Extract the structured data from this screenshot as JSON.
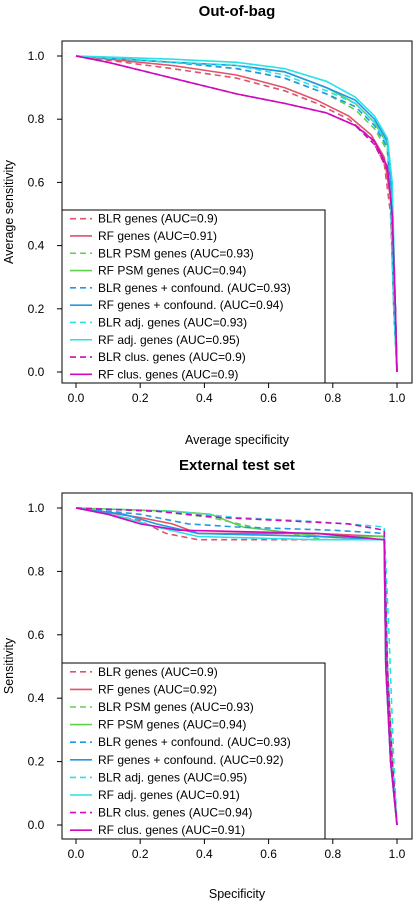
{
  "chart_data": [
    {
      "type": "line",
      "title": "Out-of-bag",
      "xlabel": "Average specificity",
      "ylabel": "Average sensitivity",
      "xlim": [
        0,
        1
      ],
      "ylim": [
        0,
        1
      ],
      "xticks": [
        "0.0",
        "0.2",
        "0.4",
        "0.6",
        "0.8",
        "1.0"
      ],
      "yticks": [
        "0.0",
        "0.2",
        "0.4",
        "0.6",
        "0.8",
        "1.0"
      ],
      "grid": false,
      "legend_position": "bottom-left",
      "series": [
        {
          "name": "BLR genes (AUC=0.9)",
          "color": "#df536b",
          "dash": true,
          "points": [
            [
              0,
              1
            ],
            [
              0.3,
              0.96
            ],
            [
              0.5,
              0.93
            ],
            [
              0.65,
              0.89
            ],
            [
              0.75,
              0.85
            ],
            [
              0.85,
              0.8
            ],
            [
              0.92,
              0.74
            ],
            [
              0.96,
              0.66
            ],
            [
              0.98,
              0.5
            ],
            [
              0.99,
              0.2
            ],
            [
              1,
              0
            ]
          ]
        },
        {
          "name": "RF genes (AUC=0.91)",
          "color": "#df536b",
          "dash": false,
          "points": [
            [
              0,
              1
            ],
            [
              0.3,
              0.97
            ],
            [
              0.5,
              0.94
            ],
            [
              0.65,
              0.9
            ],
            [
              0.75,
              0.86
            ],
            [
              0.85,
              0.81
            ],
            [
              0.92,
              0.75
            ],
            [
              0.96,
              0.68
            ],
            [
              0.98,
              0.55
            ],
            [
              0.99,
              0.25
            ],
            [
              1,
              0
            ]
          ]
        },
        {
          "name": "BLR PSM genes (AUC=0.93)",
          "color": "#61d04f",
          "dash": true,
          "points": [
            [
              0,
              1
            ],
            [
              0.3,
              0.98
            ],
            [
              0.5,
              0.96
            ],
            [
              0.65,
              0.93
            ],
            [
              0.78,
              0.88
            ],
            [
              0.87,
              0.83
            ],
            [
              0.93,
              0.77
            ],
            [
              0.97,
              0.7
            ],
            [
              0.98,
              0.55
            ],
            [
              0.99,
              0.2
            ],
            [
              1,
              0
            ]
          ]
        },
        {
          "name": "RF PSM genes (AUC=0.94)",
          "color": "#61d04f",
          "dash": false,
          "points": [
            [
              0,
              1
            ],
            [
              0.3,
              0.98
            ],
            [
              0.5,
              0.97
            ],
            [
              0.65,
              0.95
            ],
            [
              0.78,
              0.9
            ],
            [
              0.87,
              0.85
            ],
            [
              0.93,
              0.79
            ],
            [
              0.97,
              0.72
            ],
            [
              0.985,
              0.55
            ],
            [
              0.995,
              0.2
            ],
            [
              1,
              0
            ]
          ]
        },
        {
          "name": "BLR genes + confound. (AUC=0.93)",
          "color": "#2297e6",
          "dash": true,
          "points": [
            [
              0,
              1
            ],
            [
              0.3,
              0.98
            ],
            [
              0.5,
              0.96
            ],
            [
              0.65,
              0.93
            ],
            [
              0.78,
              0.88
            ],
            [
              0.87,
              0.84
            ],
            [
              0.93,
              0.78
            ],
            [
              0.97,
              0.71
            ],
            [
              0.98,
              0.55
            ],
            [
              0.99,
              0.2
            ],
            [
              1,
              0
            ]
          ]
        },
        {
          "name": "RF genes + confound. (AUC=0.94)",
          "color": "#2297e6",
          "dash": false,
          "points": [
            [
              0,
              1
            ],
            [
              0.3,
              0.98
            ],
            [
              0.5,
              0.97
            ],
            [
              0.65,
              0.95
            ],
            [
              0.78,
              0.9
            ],
            [
              0.87,
              0.86
            ],
            [
              0.93,
              0.8
            ],
            [
              0.97,
              0.73
            ],
            [
              0.985,
              0.55
            ],
            [
              0.995,
              0.2
            ],
            [
              1,
              0
            ]
          ]
        },
        {
          "name": "BLR adj. genes (AUC=0.93)",
          "color": "#28e2e5",
          "dash": true,
          "points": [
            [
              0,
              1
            ],
            [
              0.3,
              0.98
            ],
            [
              0.5,
              0.97
            ],
            [
              0.65,
              0.94
            ],
            [
              0.78,
              0.89
            ],
            [
              0.87,
              0.85
            ],
            [
              0.93,
              0.79
            ],
            [
              0.97,
              0.72
            ],
            [
              0.98,
              0.55
            ],
            [
              0.99,
              0.2
            ],
            [
              1,
              0
            ]
          ]
        },
        {
          "name": "RF adj. genes (AUC=0.95)",
          "color": "#28e2e5",
          "dash": false,
          "points": [
            [
              0,
              1
            ],
            [
              0.3,
              0.99
            ],
            [
              0.5,
              0.98
            ],
            [
              0.65,
              0.96
            ],
            [
              0.78,
              0.92
            ],
            [
              0.87,
              0.87
            ],
            [
              0.93,
              0.81
            ],
            [
              0.97,
              0.74
            ],
            [
              0.985,
              0.6
            ],
            [
              0.995,
              0.2
            ],
            [
              1,
              0
            ]
          ]
        },
        {
          "name": "BLR clus. genes (AUC=0.9)",
          "color": "#cd0bbc",
          "dash": true,
          "points": [
            [
              0,
              1
            ],
            [
              0.1,
              0.98
            ],
            [
              0.3,
              0.93
            ],
            [
              0.5,
              0.88
            ],
            [
              0.65,
              0.85
            ],
            [
              0.78,
              0.82
            ],
            [
              0.87,
              0.78
            ],
            [
              0.93,
              0.72
            ],
            [
              0.97,
              0.64
            ],
            [
              0.985,
              0.5
            ],
            [
              0.995,
              0.2
            ],
            [
              1,
              0
            ]
          ]
        },
        {
          "name": "RF clus. genes (AUC=0.9)",
          "color": "#cd0bbc",
          "dash": false,
          "points": [
            [
              0,
              1
            ],
            [
              0.1,
              0.98
            ],
            [
              0.3,
              0.93
            ],
            [
              0.5,
              0.88
            ],
            [
              0.65,
              0.85
            ],
            [
              0.78,
              0.82
            ],
            [
              0.87,
              0.78
            ],
            [
              0.93,
              0.73
            ],
            [
              0.97,
              0.65
            ],
            [
              0.985,
              0.5
            ],
            [
              0.995,
              0.2
            ],
            [
              1,
              0
            ]
          ]
        }
      ]
    },
    {
      "type": "line",
      "title": "External test set",
      "xlabel": "Specificity",
      "ylabel": "Sensitivity",
      "xlim": [
        0,
        1
      ],
      "ylim": [
        0,
        1
      ],
      "xticks": [
        "0.0",
        "0.2",
        "0.4",
        "0.6",
        "0.8",
        "1.0"
      ],
      "yticks": [
        "0.0",
        "0.2",
        "0.4",
        "0.6",
        "0.8",
        "1.0"
      ],
      "grid": false,
      "legend_position": "bottom-left",
      "series": [
        {
          "name": "BLR genes (AUC=0.9)",
          "color": "#df536b",
          "dash": true,
          "points": [
            [
              0,
              1
            ],
            [
              0.2,
              0.96
            ],
            [
              0.28,
              0.92
            ],
            [
              0.38,
              0.9
            ],
            [
              0.7,
              0.9
            ],
            [
              0.96,
              0.9
            ],
            [
              0.965,
              0.5
            ],
            [
              0.98,
              0.2
            ],
            [
              1,
              0
            ]
          ]
        },
        {
          "name": "RF genes (AUC=0.92)",
          "color": "#df536b",
          "dash": false,
          "points": [
            [
              0,
              1
            ],
            [
              0.2,
              0.97
            ],
            [
              0.3,
              0.95
            ],
            [
              0.38,
              0.92
            ],
            [
              0.75,
              0.92
            ],
            [
              0.96,
              0.91
            ],
            [
              0.97,
              0.5
            ],
            [
              0.985,
              0.2
            ],
            [
              1,
              0
            ]
          ]
        },
        {
          "name": "BLR PSM genes (AUC=0.93)",
          "color": "#61d04f",
          "dash": true,
          "points": [
            [
              0,
              1
            ],
            [
              0.25,
              0.99
            ],
            [
              0.42,
              0.97
            ],
            [
              0.55,
              0.94
            ],
            [
              0.77,
              0.9
            ],
            [
              0.96,
              0.9
            ],
            [
              0.965,
              0.5
            ],
            [
              0.98,
              0.2
            ],
            [
              1,
              0
            ]
          ]
        },
        {
          "name": "RF PSM genes (AUC=0.94)",
          "color": "#61d04f",
          "dash": false,
          "points": [
            [
              0,
              1
            ],
            [
              0.3,
              0.99
            ],
            [
              0.42,
              0.98
            ],
            [
              0.52,
              0.94
            ],
            [
              0.77,
              0.91
            ],
            [
              0.96,
              0.91
            ],
            [
              0.97,
              0.5
            ],
            [
              0.985,
              0.2
            ],
            [
              1,
              0
            ]
          ]
        },
        {
          "name": "BLR genes + confound. (AUC=0.93)",
          "color": "#2297e6",
          "dash": true,
          "points": [
            [
              0,
              1
            ],
            [
              0.2,
              0.98
            ],
            [
              0.35,
              0.95
            ],
            [
              0.5,
              0.94
            ],
            [
              0.8,
              0.93
            ],
            [
              0.96,
              0.92
            ],
            [
              0.97,
              0.5
            ],
            [
              0.98,
              0.2
            ],
            [
              1,
              0
            ]
          ]
        },
        {
          "name": "RF genes + confound. (AUC=0.92)",
          "color": "#2297e6",
          "dash": false,
          "points": [
            [
              0,
              1
            ],
            [
              0.15,
              0.98
            ],
            [
              0.25,
              0.95
            ],
            [
              0.38,
              0.92
            ],
            [
              0.75,
              0.91
            ],
            [
              0.96,
              0.9
            ],
            [
              0.965,
              0.5
            ],
            [
              0.98,
              0.2
            ],
            [
              1,
              0
            ]
          ]
        },
        {
          "name": "BLR adj. genes (AUC=0.95)",
          "color": "#28e2e5",
          "dash": true,
          "points": [
            [
              0,
              1
            ],
            [
              0.3,
              0.99
            ],
            [
              0.5,
              0.97
            ],
            [
              0.7,
              0.96
            ],
            [
              0.85,
              0.95
            ],
            [
              0.96,
              0.94
            ],
            [
              0.975,
              0.6
            ],
            [
              0.99,
              0.2
            ],
            [
              1,
              0
            ]
          ]
        },
        {
          "name": "RF adj. genes (AUC=0.91)",
          "color": "#28e2e5",
          "dash": false,
          "points": [
            [
              0,
              1
            ],
            [
              0.15,
              0.97
            ],
            [
              0.25,
              0.94
            ],
            [
              0.38,
              0.91
            ],
            [
              0.75,
              0.9
            ],
            [
              0.96,
              0.9
            ],
            [
              0.965,
              0.5
            ],
            [
              0.98,
              0.2
            ],
            [
              1,
              0
            ]
          ]
        },
        {
          "name": "BLR clus. genes (AUC=0.94)",
          "color": "#cd0bbc",
          "dash": true,
          "points": [
            [
              0,
              1
            ],
            [
              0.25,
              0.99
            ],
            [
              0.45,
              0.97
            ],
            [
              0.65,
              0.96
            ],
            [
              0.85,
              0.95
            ],
            [
              0.96,
              0.93
            ],
            [
              0.97,
              0.5
            ],
            [
              0.985,
              0.2
            ],
            [
              1,
              0
            ]
          ]
        },
        {
          "name": "RF clus. genes (AUC=0.91)",
          "color": "#cd0bbc",
          "dash": false,
          "points": [
            [
              0,
              1
            ],
            [
              0.1,
              0.98
            ],
            [
              0.2,
              0.95
            ],
            [
              0.32,
              0.93
            ],
            [
              0.75,
              0.92
            ],
            [
              0.96,
              0.9
            ],
            [
              0.965,
              0.5
            ],
            [
              0.98,
              0.2
            ],
            [
              1,
              0
            ]
          ]
        }
      ]
    }
  ]
}
